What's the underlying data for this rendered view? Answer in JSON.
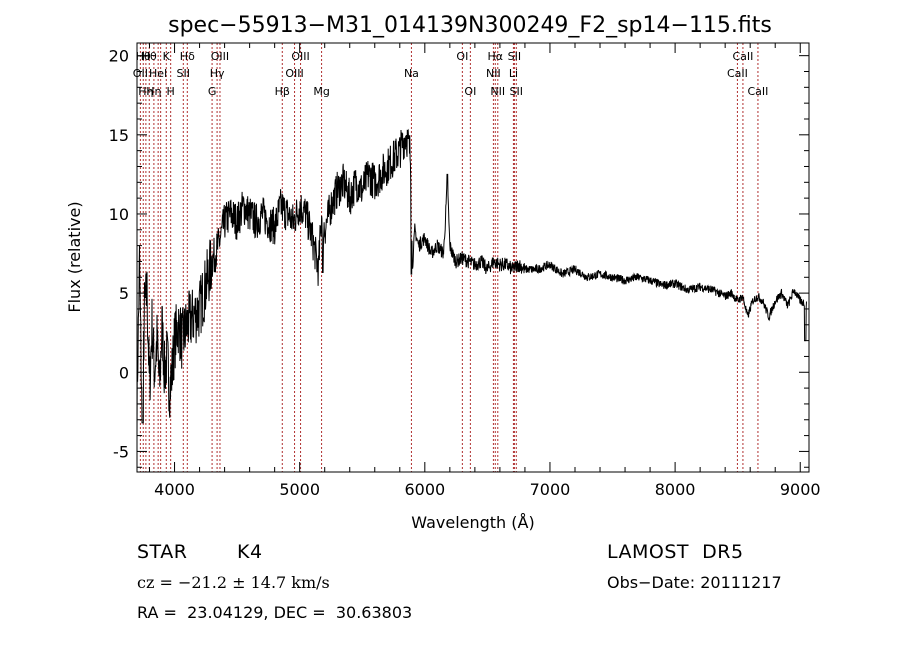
{
  "chart_data": {
    "type": "line",
    "title": "spec−55913−M31_014139N300249_F2_sp14−115.fits",
    "xlabel": "Wavelength (Å)",
    "ylabel": "Flux (relative)",
    "xlim": [
      3700,
      9070
    ],
    "ylim": [
      -6.3,
      20.8
    ],
    "xticks": [
      4000,
      5000,
      6000,
      7000,
      8000,
      9000
    ],
    "yticks": [
      -5,
      0,
      5,
      10,
      15,
      20
    ],
    "grid": false,
    "series": [
      {
        "x": [
          3700,
          3720,
          3740,
          3760,
          3780,
          3800,
          3820,
          3840,
          3860,
          3880,
          3900,
          3920,
          3940,
          3960,
          3980,
          4000,
          4030,
          4060,
          4100,
          4150,
          4200,
          4250,
          4300,
          4350,
          4400,
          4450,
          4500,
          4550,
          4600,
          4650,
          4700,
          4750,
          4800,
          4850,
          4900,
          4950,
          5000,
          5050,
          5100,
          5150,
          5175,
          5200,
          5250,
          5300,
          5350,
          5400,
          5450,
          5500,
          5550,
          5600,
          5650,
          5700,
          5750,
          5800,
          5850,
          5880,
          5890,
          5900,
          5920,
          5950,
          6000,
          6050,
          6100,
          6150,
          6180,
          6200,
          6220,
          6250,
          6300,
          6350,
          6400,
          6450,
          6500,
          6550,
          6600,
          6650,
          6700,
          6750,
          6800,
          6900,
          7000,
          7100,
          7200,
          7300,
          7400,
          7500,
          7600,
          7700,
          7800,
          7900,
          8000,
          8100,
          8200,
          8300,
          8400,
          8450,
          8500,
          8540,
          8580,
          8620,
          8660,
          8700,
          8750,
          8800,
          8850,
          8900,
          8950,
          9000,
          9050
        ],
        "y": [
          -2,
          7,
          -3,
          4,
          5,
          -1,
          3,
          0,
          2,
          -1,
          3,
          0,
          1,
          -1,
          0,
          2,
          3,
          2,
          3,
          3.5,
          4,
          5.5,
          7,
          8,
          9.5,
          10,
          9.5,
          10.5,
          10,
          9.5,
          10,
          9.5,
          9.2,
          10.5,
          10,
          9.5,
          10.5,
          10,
          8.5,
          6.5,
          10,
          9,
          10.5,
          11.5,
          12,
          11,
          12,
          11.5,
          12.5,
          12,
          12.5,
          13,
          13.5,
          14,
          15,
          14,
          13,
          6.5,
          9,
          8,
          8.5,
          7.5,
          8,
          7.5,
          12,
          8,
          7.5,
          7,
          7.2,
          7,
          6.8,
          7,
          6.5,
          7,
          6.8,
          6.8,
          6.5,
          6.8,
          6.5,
          6.5,
          6.8,
          6.2,
          6.5,
          6,
          6.2,
          6,
          5.8,
          6,
          5.8,
          5.5,
          5.6,
          5.2,
          5.4,
          5.2,
          4.8,
          5,
          4.5,
          4.8,
          3.5,
          4.5,
          4.8,
          4.5,
          3.5,
          4.5,
          5,
          4.2,
          5.2,
          4.5,
          4.3
        ]
      }
    ],
    "lines": [
      {
        "x": 3727,
        "label": "OII",
        "row": 2
      },
      {
        "x": 3750,
        "label": "Hθ",
        "row": 1
      },
      {
        "x": 3771,
        "label": "Hη",
        "row": 3
      },
      {
        "x": 3798,
        "label": "Hθ",
        "row": 1
      },
      {
        "x": 3835,
        "label": "Hη",
        "row": 3
      },
      {
        "x": 3869,
        "label": "HeI",
        "row": 2
      },
      {
        "x": 3889,
        "label": "",
        "row": 0
      },
      {
        "x": 3934,
        "label": "K",
        "row": 1
      },
      {
        "x": 3969,
        "label": "H",
        "row": 3
      },
      {
        "x": 4070,
        "label": "SII",
        "row": 2
      },
      {
        "x": 4102,
        "label": "Hδ",
        "row": 1
      },
      {
        "x": 4300,
        "label": "G",
        "row": 3
      },
      {
        "x": 4340,
        "label": "Hγ",
        "row": 2
      },
      {
        "x": 4363,
        "label": "OIII",
        "row": 1
      },
      {
        "x": 4861,
        "label": "Hβ",
        "row": 3
      },
      {
        "x": 4959,
        "label": "OIII",
        "row": 2
      },
      {
        "x": 5007,
        "label": "OIII",
        "row": 1
      },
      {
        "x": 5175,
        "label": "Mg",
        "row": 3
      },
      {
        "x": 5893,
        "label": "Na",
        "row": 2
      },
      {
        "x": 6300,
        "label": "OI",
        "row": 1
      },
      {
        "x": 6364,
        "label": "OI",
        "row": 3
      },
      {
        "x": 6548,
        "label": "NII",
        "row": 2
      },
      {
        "x": 6563,
        "label": "Hα",
        "row": 1
      },
      {
        "x": 6583,
        "label": "NII",
        "row": 3
      },
      {
        "x": 6708,
        "label": "Li",
        "row": 2
      },
      {
        "x": 6716,
        "label": "SII",
        "row": 1
      },
      {
        "x": 6731,
        "label": "SII",
        "row": 3
      },
      {
        "x": 8498,
        "label": "CaII",
        "row": 2
      },
      {
        "x": 8542,
        "label": "CaII",
        "row": 1
      },
      {
        "x": 8662,
        "label": "CaII",
        "row": 3
      }
    ]
  },
  "info": {
    "class": "STAR",
    "subclass": "K4",
    "survey": "LAMOST  DR5",
    "cz": "cz = −21.2 ± 14.7 km/s",
    "obs_date": "Obs−Date: 20111217",
    "ra_dec": "RA =  23.04129, DEC =  30.63803"
  },
  "colors": {
    "axis": "#000000",
    "spectrum": "#000000",
    "line_marker": "#b03030"
  }
}
